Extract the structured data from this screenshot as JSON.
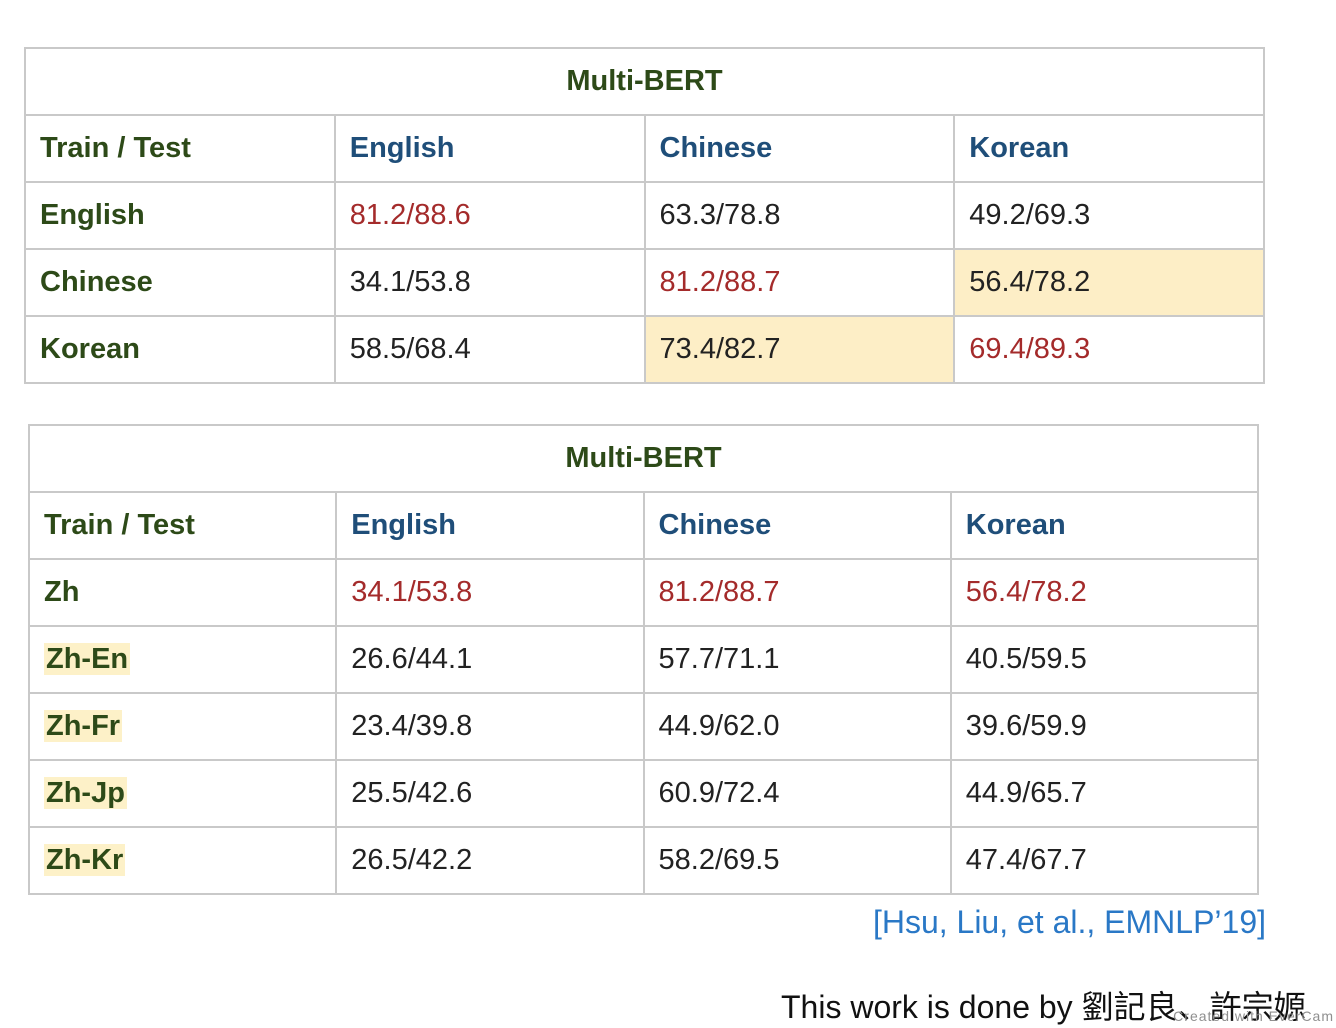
{
  "table1": {
    "title": "Multi-BERT",
    "header": [
      "Train / Test",
      "English",
      "Chinese",
      "Korean"
    ],
    "rows": [
      {
        "label": "English",
        "cells": [
          "81.2/88.6",
          "63.3/78.8",
          "49.2/69.3"
        ]
      },
      {
        "label": "Chinese",
        "cells": [
          "34.1/53.8",
          "81.2/88.7",
          "56.4/78.2"
        ]
      },
      {
        "label": "Korean",
        "cells": [
          "58.5/68.4",
          "73.4/82.7",
          "69.4/89.3"
        ]
      }
    ]
  },
  "table2": {
    "title": "Multi-BERT",
    "header": [
      "Train / Test",
      "English",
      "Chinese",
      "Korean"
    ],
    "rows": [
      {
        "label": "Zh",
        "cells": [
          "34.1/53.8",
          "81.2/88.7",
          "56.4/78.2"
        ]
      },
      {
        "label": "Zh-En",
        "cells": [
          "26.6/44.1",
          "57.7/71.1",
          "40.5/59.5"
        ]
      },
      {
        "label": "Zh-Fr",
        "cells": [
          "23.4/39.8",
          "44.9/62.0",
          "39.6/59.9"
        ]
      },
      {
        "label": "Zh-Jp",
        "cells": [
          "25.5/42.6",
          "60.9/72.4",
          "44.9/65.7"
        ]
      },
      {
        "label": "Zh-Kr",
        "cells": [
          "26.5/42.2",
          "58.2/69.5",
          "47.4/67.7"
        ]
      }
    ]
  },
  "citation": "[Hsu, Liu, et al., EMNLP’19]",
  "credit": "This work is done by 劉記良、許宗嫄",
  "watermark": "Created with EverCam",
  "colors": {
    "row_header": "#2d4a18",
    "col_header": "#1f4e79",
    "diagonal_red": "#a42b2b",
    "highlight": "#fdeec6",
    "citation": "#2a78c6"
  }
}
